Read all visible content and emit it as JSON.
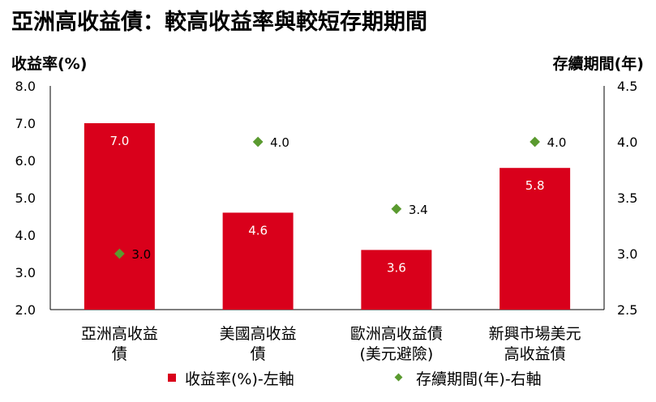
{
  "chart_data": {
    "type": "bar",
    "title": "亞洲高收益債：較高收益率與較短存期期間",
    "ylabel_left": "收益率(%)",
    "ylabel_right": "存續期間(年)",
    "categories": [
      [
        "亞洲高收益",
        "債"
      ],
      [
        "美國高收益",
        "債"
      ],
      [
        "歐洲高收益債",
        "(美元避險)"
      ],
      [
        "新興市場美元",
        "高收益債"
      ]
    ],
    "series": [
      {
        "name": "收益率(%)-左軸",
        "kind": "bar",
        "axis": "left",
        "values": [
          7.0,
          4.6,
          3.6,
          5.8
        ],
        "labels": [
          "7.0",
          "4.6",
          "3.6",
          "5.8"
        ]
      },
      {
        "name": "存續期間(年)-右軸",
        "kind": "marker",
        "axis": "right",
        "values": [
          3.0,
          4.0,
          3.4,
          4.0
        ],
        "labels": [
          "3.0",
          "4.0",
          "3.4",
          "4.0"
        ]
      }
    ],
    "ylim_left": [
      2.0,
      8.0
    ],
    "yticks_left": [
      "8.0",
      "7.0",
      "6.0",
      "5.0",
      "4.0",
      "3.0",
      "2.0"
    ],
    "ytick_values_left": [
      8.0,
      7.0,
      6.0,
      5.0,
      4.0,
      3.0,
      2.0
    ],
    "ylim_right": [
      2.5,
      4.5
    ],
    "yticks_right": [
      "4.5",
      "4.0",
      "3.5",
      "3.0",
      "2.5"
    ],
    "ytick_values_right": [
      4.5,
      4.0,
      3.5,
      3.0,
      2.5
    ],
    "legend_position": "bottom",
    "colors": {
      "bar": "#d9001b",
      "marker": "#5a9a2f",
      "axis": "#000000"
    }
  }
}
